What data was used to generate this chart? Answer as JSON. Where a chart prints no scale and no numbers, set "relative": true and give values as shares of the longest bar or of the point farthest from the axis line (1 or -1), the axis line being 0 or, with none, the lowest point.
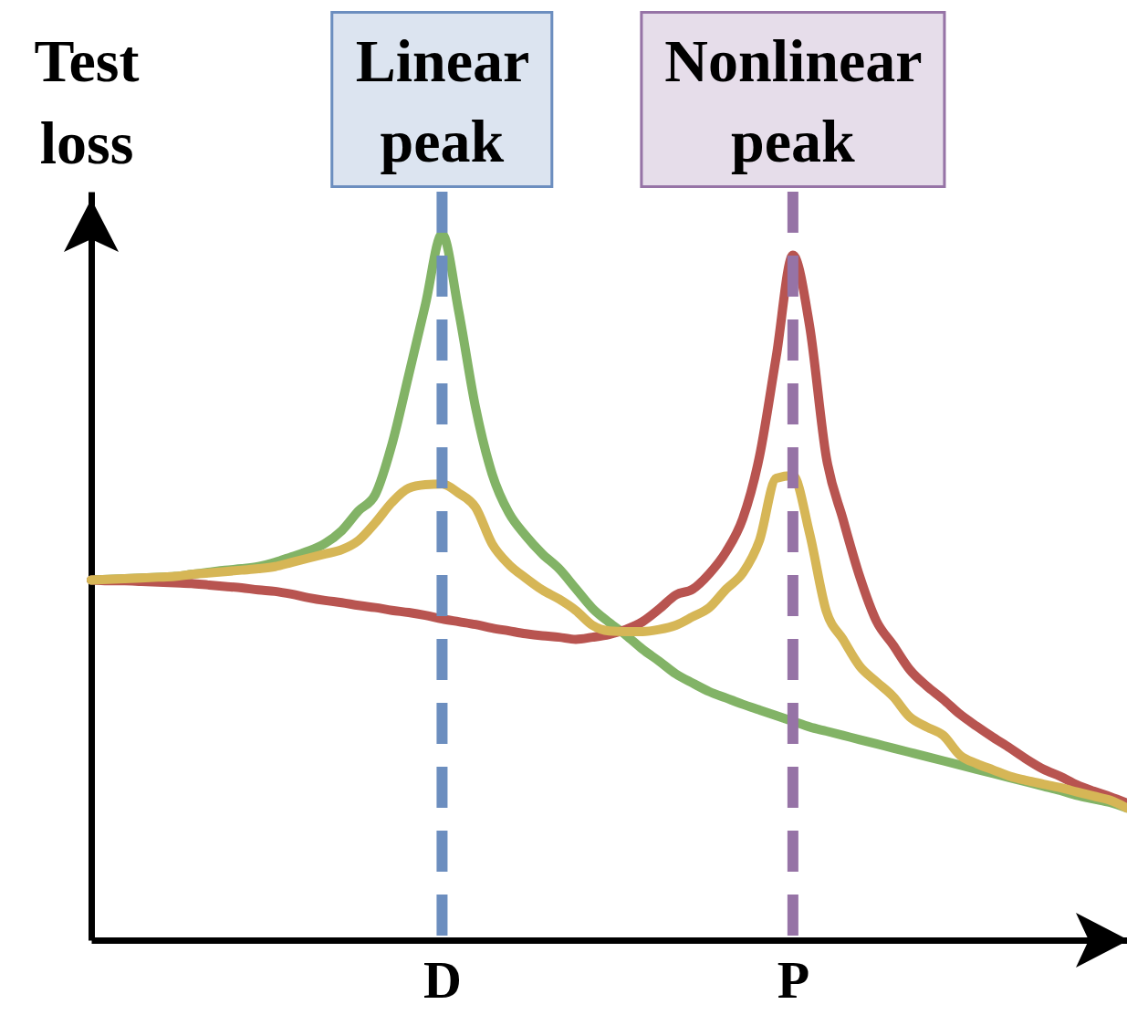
{
  "chart_data": {
    "type": "line",
    "ylabel": "Test loss",
    "relative": true,
    "categories": [
      null,
      null,
      null,
      null,
      null,
      null,
      null,
      null,
      null,
      null,
      null,
      null,
      null,
      null,
      null,
      null,
      null,
      null,
      null,
      null,
      null,
      "D",
      null,
      null,
      null,
      null,
      null,
      null,
      null,
      null,
      null,
      null,
      null,
      null,
      null,
      null,
      null,
      null,
      null,
      null,
      null,
      null,
      "P",
      null,
      null,
      null,
      null,
      null,
      null,
      null,
      null,
      null,
      null,
      null,
      null,
      null,
      null,
      null,
      null,
      null,
      null,
      null,
      null
    ],
    "series": [
      {
        "color": "#82b366",
        "values": [
          0.51,
          0.511,
          0.512,
          0.513,
          0.514,
          0.515,
          0.518,
          0.521,
          0.524,
          0.526,
          0.529,
          0.535,
          0.543,
          0.551,
          0.562,
          0.58,
          0.608,
          0.631,
          0.702,
          0.8,
          0.9,
          1,
          0.89,
          0.755,
          0.66,
          0.605,
          0.573,
          0.547,
          0.526,
          0.498,
          0.47,
          0.45,
          0.432,
          0.412,
          0.395,
          0.377,
          0.364,
          0.352,
          0.343,
          0.334,
          0.326,
          0.318,
          0.31,
          0.302,
          0.296,
          0.29,
          0.284,
          0.278,
          0.272,
          0.266,
          0.26,
          0.254,
          0.248,
          0.242,
          0.236,
          0.23,
          0.224,
          0.218,
          0.212,
          0.205,
          0.2,
          0.195,
          0.187
        ]
      },
      {
        "color": "#b85450",
        "values": [
          0.51,
          0.509,
          0.509,
          0.508,
          0.507,
          0.506,
          0.505,
          0.503,
          0.501,
          0.499,
          0.496,
          0.494,
          0.49,
          0.485,
          0.481,
          0.478,
          0.474,
          0.471,
          0.467,
          0.464,
          0.46,
          0.455,
          0.451,
          0.447,
          0.442,
          0.438,
          0.434,
          0.431,
          0.429,
          0.426,
          0.429,
          0.433,
          0.44,
          0.451,
          0.469,
          0.489,
          0.497,
          0.519,
          0.55,
          0.597,
          0.685,
          0.826,
          0.97,
          0.87,
          0.684,
          0.596,
          0.515,
          0.452,
          0.418,
          0.383,
          0.36,
          0.341,
          0.32,
          0.303,
          0.287,
          0.272,
          0.256,
          0.242,
          0.232,
          0.22,
          0.211,
          0.203,
          0.194
        ]
      },
      {
        "color": "#d6b656",
        "values": [
          0.51,
          0.511,
          0.512,
          0.513,
          0.514,
          0.515,
          0.518,
          0.52,
          0.522,
          0.524,
          0.526,
          0.529,
          0.535,
          0.541,
          0.547,
          0.553,
          0.566,
          0.591,
          0.62,
          0.64,
          0.645,
          0.646,
          0.633,
          0.613,
          0.561,
          0.532,
          0.513,
          0.496,
          0.483,
          0.467,
          0.446,
          0.438,
          0.437,
          0.437,
          0.44,
          0.446,
          0.458,
          0.471,
          0.497,
          0.52,
          0.566,
          0.654,
          0.658,
          0.576,
          0.466,
          0.426,
          0.388,
          0.366,
          0.345,
          0.316,
          0.302,
          0.29,
          0.262,
          0.25,
          0.241,
          0.232,
          0.226,
          0.221,
          0.216,
          0.21,
          0.204,
          0.198,
          0.187
        ]
      }
    ],
    "ref_lines": [
      {
        "axis": "x",
        "value": "D",
        "label": "Linear peak",
        "color": "#6c8ebf",
        "line_style": "dashed"
      },
      {
        "axis": "x",
        "value": "P",
        "label": "Nonlinear peak",
        "color": "#9673a6",
        "line_style": "dashed"
      }
    ]
  }
}
